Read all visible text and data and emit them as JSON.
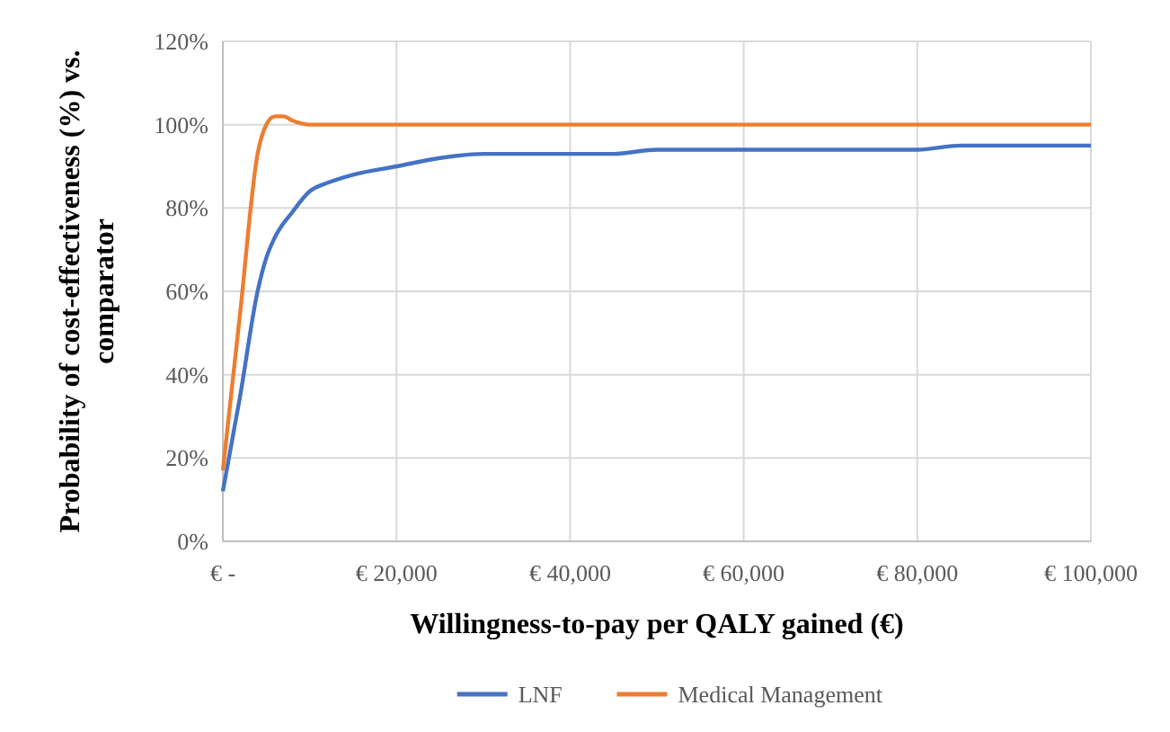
{
  "chart_data": {
    "type": "line",
    "xlabel": "Willingness-to-pay per QALY gained (€)",
    "ylabel": "Probability of cost-effectiveness (%) vs. comparator",
    "xlim": [
      0,
      100000
    ],
    "xticks": [
      {
        "value": 0,
        "label": "€ -"
      },
      {
        "value": 20000,
        "label": "€ 20,000"
      },
      {
        "value": 40000,
        "label": "€ 40,000"
      },
      {
        "value": 60000,
        "label": "€ 60,000"
      },
      {
        "value": 80000,
        "label": "€ 80,000"
      },
      {
        "value": 100000,
        "label": "€ 100,000"
      }
    ],
    "ylim": [
      0,
      120
    ],
    "yticks": [
      {
        "value": 0,
        "label": "0%"
      },
      {
        "value": 20,
        "label": "20%"
      },
      {
        "value": 40,
        "label": "40%"
      },
      {
        "value": 60,
        "label": "60%"
      },
      {
        "value": 80,
        "label": "80%"
      },
      {
        "value": 100,
        "label": "100%"
      },
      {
        "value": 120,
        "label": "120%"
      }
    ],
    "grid": true,
    "legend": "bottom",
    "marker": "none",
    "line_style": "solid",
    "series": [
      {
        "name": "LNF",
        "color": "#4472c4",
        "x": [
          0,
          2000,
          4000,
          5000,
          6000,
          8000,
          10000,
          12000,
          15000,
          20000,
          25000,
          30000,
          35000,
          40000,
          45000,
          50000,
          55000,
          60000,
          70000,
          80000,
          85000,
          90000,
          100000
        ],
        "values": [
          12,
          35,
          60,
          68,
          73,
          79,
          84,
          86,
          88,
          90,
          92,
          93,
          93,
          93,
          93,
          94,
          94,
          94,
          94,
          94,
          95,
          95,
          95
        ]
      },
      {
        "name": "Medical Management",
        "color": "#ed7d31",
        "x": [
          0,
          2000,
          4000,
          5000,
          6000,
          7000,
          8000,
          10000,
          15000,
          20000,
          40000,
          60000,
          80000,
          100000
        ],
        "values": [
          17,
          55,
          93,
          100,
          102,
          102,
          101,
          100,
          100,
          100,
          100,
          100,
          100,
          100
        ]
      }
    ]
  }
}
